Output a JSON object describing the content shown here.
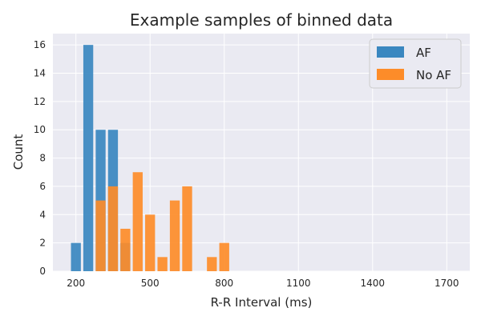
{
  "chart_data": {
    "type": "bar",
    "title": "Example samples of binned data",
    "xlabel": "R-R Interval (ms)",
    "ylabel": "Count",
    "xlim": [
      107,
      1793
    ],
    "ylim": [
      0,
      16.8
    ],
    "x_ticks": [
      200,
      500,
      800,
      1100,
      1400,
      1700
    ],
    "y_ticks": [
      0,
      2,
      4,
      6,
      8,
      10,
      12,
      14,
      16
    ],
    "grid": true,
    "legend_position": "top-right",
    "series": [
      {
        "name": "AF",
        "color": "#3a87c0",
        "x": [
          200,
          250,
          300,
          350,
          400
        ],
        "values": [
          2,
          16,
          10,
          10,
          2
        ]
      },
      {
        "name": "No AF",
        "color": "#fd8c29",
        "x": [
          300,
          350,
          400,
          450,
          500,
          550,
          600,
          650,
          750,
          800
        ],
        "values": [
          5,
          6,
          3,
          7,
          4,
          1,
          5,
          6,
          1,
          2
        ]
      }
    ]
  }
}
